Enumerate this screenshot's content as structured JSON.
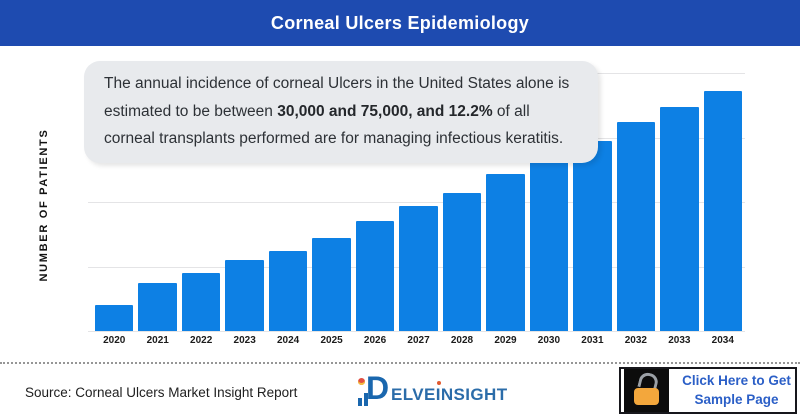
{
  "header": {
    "title": "Corneal Ulcers Epidemiology",
    "bg_color": "#1E4BB0"
  },
  "callout": {
    "text_part1": "The annual incidence of corneal Ulcers in the United States alone is estimated to be between ",
    "text_bold": "30,000 and 75,000, and 12.2%",
    "text_part2": " of all corneal transplants performed are for managing infectious keratitis."
  },
  "chart_data": {
    "type": "bar",
    "title": "Corneal Ulcers Epidemiology",
    "xlabel": "",
    "ylabel": "NUMBER OF PATIENTS",
    "categories": [
      "2020",
      "2021",
      "2022",
      "2023",
      "2024",
      "2025",
      "2026",
      "2027",
      "2028",
      "2029",
      "2030",
      "2031",
      "2032",
      "2033",
      "2034"
    ],
    "values": [
      10,
      18.5,
      22.5,
      27.5,
      31,
      36,
      42.5,
      48.5,
      53.5,
      61,
      67,
      73.5,
      81,
      87,
      93
    ],
    "value_units": "relative height, % of y-axis max (no numeric tick labels shown in figure)",
    "ylim": [
      0,
      100
    ],
    "bar_color": "#0D80E4",
    "grid": true,
    "gridline_count": 5,
    "legend": false
  },
  "footer": {
    "source": "Source: Corneal Ulcers Market Insight Report",
    "logo": {
      "d": "D",
      "part1": "ELVE",
      "i": "I",
      "part2": "NSIGHT"
    },
    "cta": {
      "line1": "Click Here to Get",
      "line2": "Sample Page"
    }
  }
}
